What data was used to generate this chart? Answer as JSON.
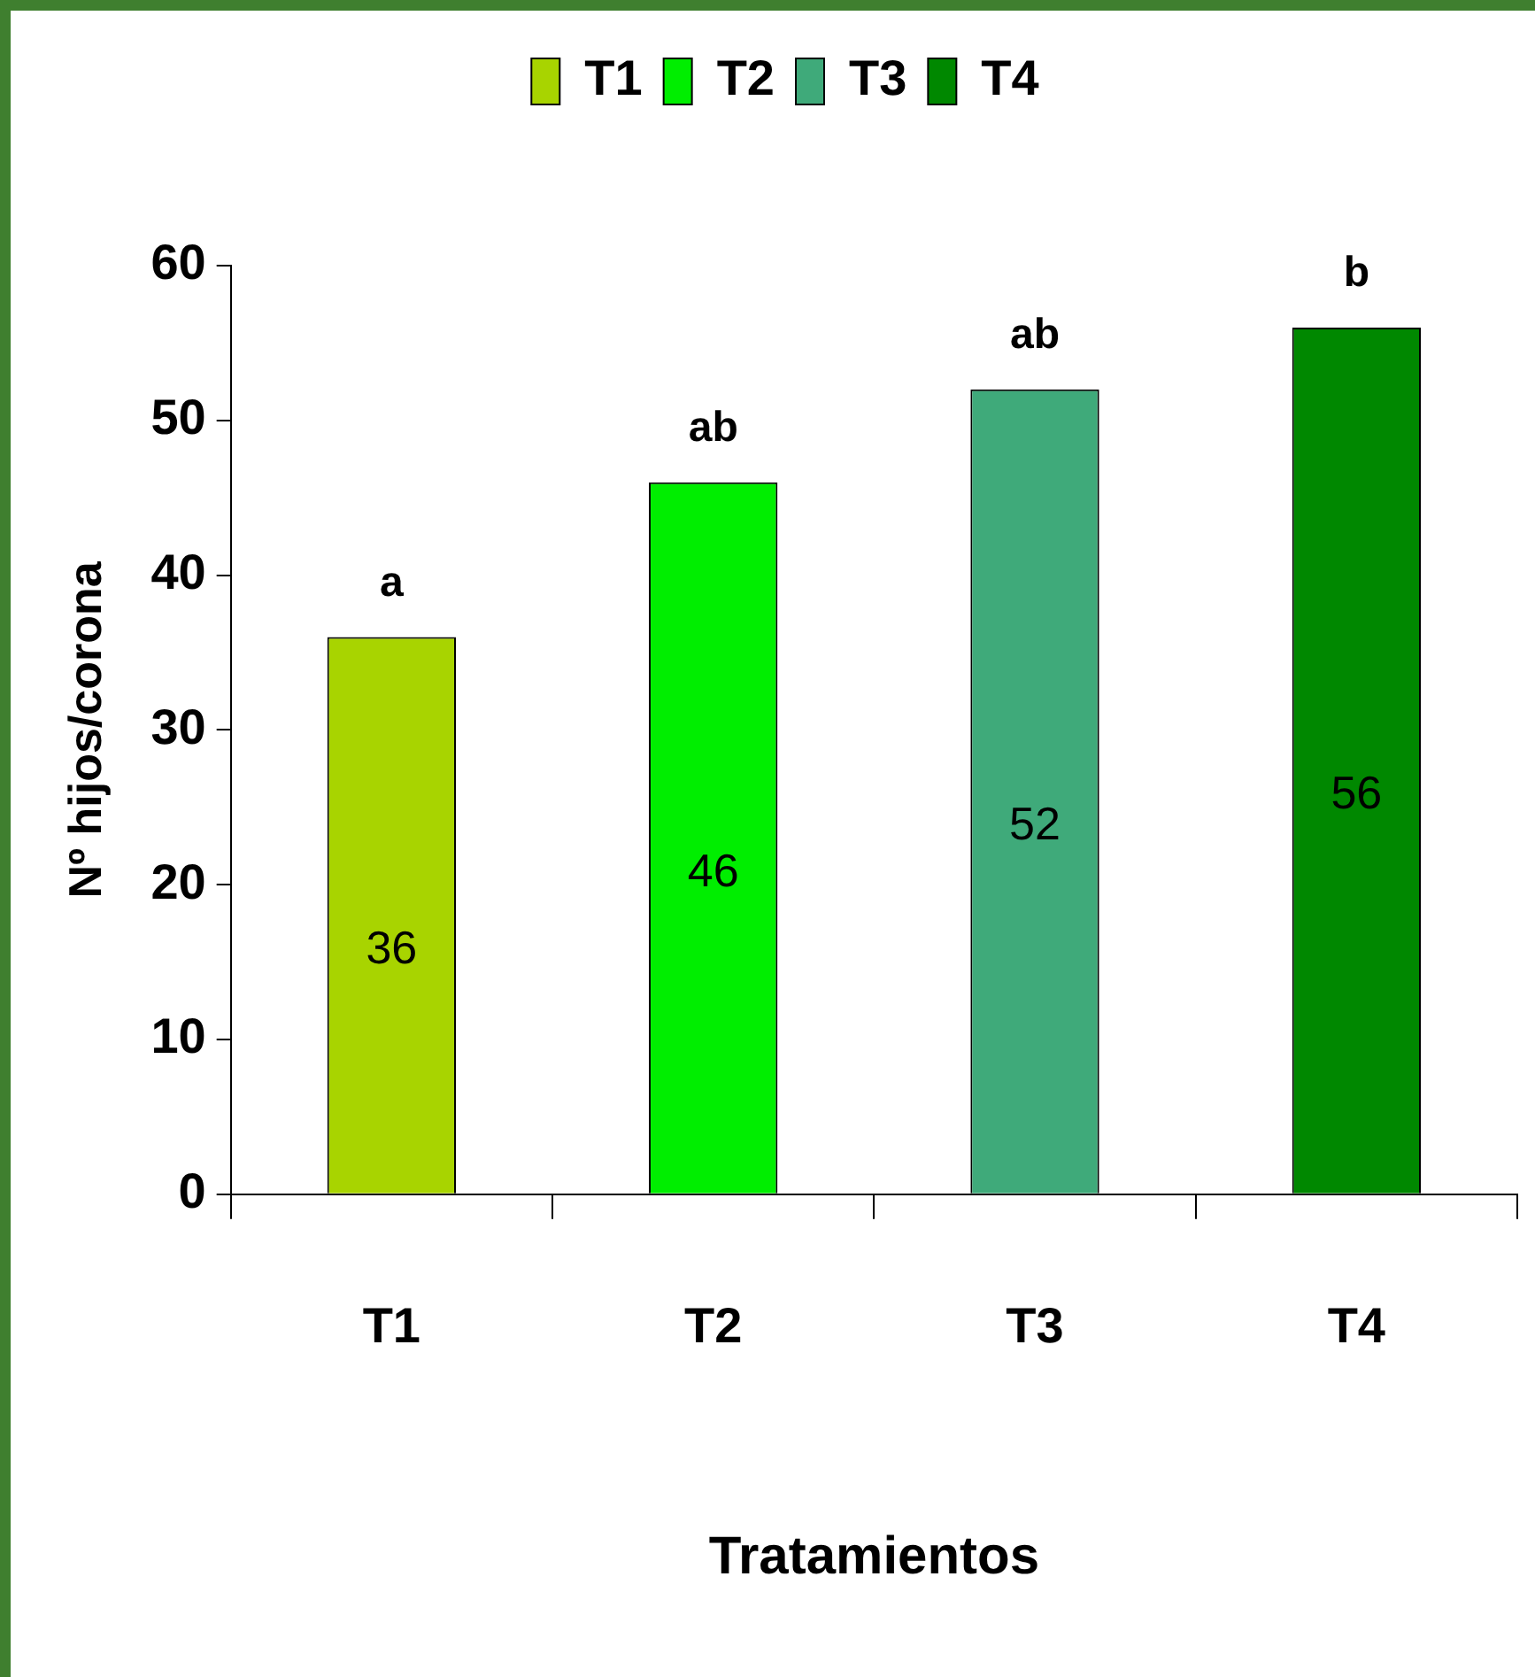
{
  "chart_data": {
    "type": "bar",
    "xlabel": "Tratamientos",
    "ylabel": "Nº hijos/corona",
    "categories": [
      "T1",
      "T2",
      "T3",
      "T4"
    ],
    "series": [
      {
        "name": "T1",
        "color": "#a8d400",
        "values": [
          36,
          null,
          null,
          null
        ]
      },
      {
        "name": "T2",
        "color": "#00ee00",
        "values": [
          null,
          46,
          null,
          null
        ]
      },
      {
        "name": "T3",
        "color": "#3faa7a",
        "values": [
          null,
          null,
          52,
          null
        ]
      },
      {
        "name": "T4",
        "color": "#008800",
        "values": [
          null,
          null,
          null,
          56
        ]
      }
    ],
    "ylim": [
      0,
      60
    ],
    "yticks": [
      0,
      10,
      20,
      30,
      40,
      50,
      60
    ],
    "grid": false,
    "legend": "top",
    "data_labels": true,
    "annotations": [
      {
        "text": "a",
        "x": "T1",
        "y": 36
      },
      {
        "text": "ab",
        "x": "T2",
        "y": 46
      },
      {
        "text": "ab",
        "x": "T3",
        "y": 52
      },
      {
        "text": "b",
        "x": "T4",
        "y": 56
      }
    ]
  }
}
